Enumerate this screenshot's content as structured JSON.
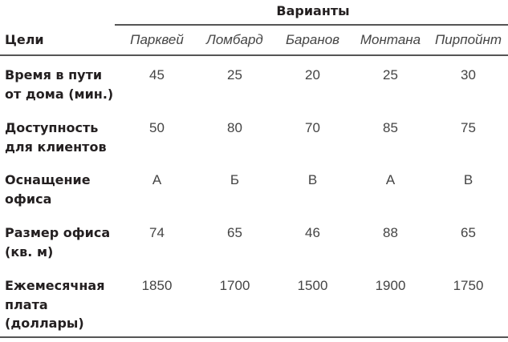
{
  "table": {
    "group_header": "Варианты",
    "goal_header": "Цели",
    "options": [
      "Парквей",
      "Ломбард",
      "Баранов",
      "Монтана",
      "Пирпойнт"
    ],
    "rows": [
      {
        "label": [
          "Время в пути",
          "от дома (мин.)"
        ],
        "values": [
          "45",
          "25",
          "20",
          "25",
          "30"
        ]
      },
      {
        "label": [
          "Доступность",
          "для клиентов"
        ],
        "values": [
          "50",
          "80",
          "70",
          "85",
          "75"
        ]
      },
      {
        "label": [
          "Оснащение",
          "офиса"
        ],
        "values": [
          "А",
          "Б",
          "В",
          "А",
          "В"
        ]
      },
      {
        "label": [
          "Размер офиса",
          "(кв. м)"
        ],
        "values": [
          "74",
          "65",
          "46",
          "88",
          "65"
        ]
      },
      {
        "label": [
          "Ежемесячная",
          "плата",
          "(доллары)"
        ],
        "values": [
          "1850",
          "1700",
          "1500",
          "1900",
          "1750"
        ]
      }
    ]
  }
}
